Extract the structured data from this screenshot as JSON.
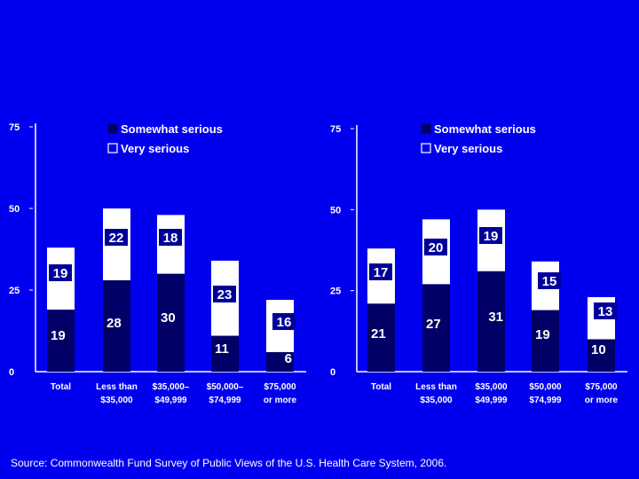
{
  "colors": {
    "background": "#0000ee",
    "somewhat_serious": "#000066",
    "very_serious": "#ffffff",
    "axis": "#ffffff",
    "label_box": "#000099"
  },
  "footer": "Source: Commonwealth Fund Survey of Public Views of the U.S. Health Care System, 2006.",
  "chart_data": [
    {
      "type": "bar",
      "stacked": true,
      "ylim": [
        0,
        75
      ],
      "yticks": [
        "0",
        "25",
        "50",
        "75"
      ],
      "categories": [
        [
          "Total"
        ],
        [
          "Less than",
          "$35,000"
        ],
        [
          "$35,000–",
          "$49,999"
        ],
        [
          "$50,000–",
          "$74,999"
        ],
        [
          "$75,000",
          "or more"
        ]
      ],
      "legend": [
        "Somewhat serious",
        "Very serious"
      ],
      "series": [
        {
          "name": "Somewhat serious",
          "values": [
            19,
            28,
            30,
            11,
            6
          ]
        },
        {
          "name": "Very serious",
          "values": [
            19,
            22,
            18,
            23,
            16
          ]
        }
      ]
    },
    {
      "type": "bar",
      "stacked": true,
      "ylim": [
        0,
        75
      ],
      "yticks": [
        "0",
        "25",
        "50",
        "75"
      ],
      "categories": [
        [
          "Total"
        ],
        [
          "Less than",
          "$35,000"
        ],
        [
          "$35,000",
          "$49,999"
        ],
        [
          "$50,000",
          "$74,999"
        ],
        [
          "$75,000",
          "or more"
        ]
      ],
      "legend": [
        "Somewhat serious",
        "Very serious"
      ],
      "series": [
        {
          "name": "Somewhat serious",
          "values": [
            21,
            27,
            31,
            19,
            10
          ]
        },
        {
          "name": "Very serious",
          "values": [
            17,
            20,
            19,
            15,
            13
          ]
        }
      ]
    }
  ]
}
